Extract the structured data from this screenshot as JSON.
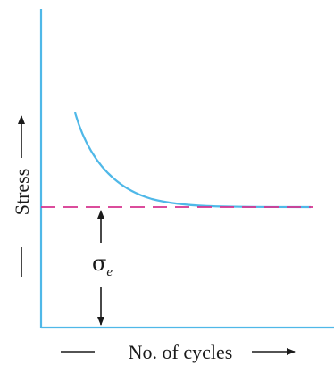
{
  "diagram": {
    "x_axis_label": "No. of cycles",
    "y_axis_label": "Stress",
    "limit_symbol": "σ",
    "limit_subscript": "e",
    "colors": {
      "axes": "#4fb8e8",
      "curve": "#4fb8e8",
      "limit_line": "#d6338f",
      "text": "#1a1a1a",
      "arrows": "#1a1a1a"
    }
  }
}
